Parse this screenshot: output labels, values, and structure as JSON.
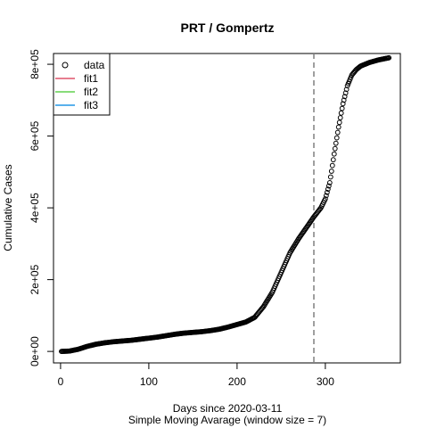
{
  "chart_data": {
    "type": "scatter",
    "title": "PRT / Gompertz",
    "xlabel": "Days since 2020-03-11",
    "subtitle": "Simple Moving Avarage (window size = 7)",
    "ylabel": "Cumulative Cases",
    "xlim": [
      -8,
      385
    ],
    "ylim": [
      -32000,
      830000
    ],
    "x_ticks": [
      0,
      100,
      200,
      300
    ],
    "x_tick_labels": [
      "0",
      "100",
      "200",
      "300"
    ],
    "y_ticks": [
      0,
      200000,
      400000,
      600000,
      800000
    ],
    "y_tick_labels": [
      "0e+00",
      "2e+05",
      "4e+05",
      "6e+05",
      "8e+05"
    ],
    "vline": {
      "x": 287,
      "style": "dashed",
      "color": "#808080"
    },
    "grid": false,
    "legend_position": "top-left",
    "legend": [
      {
        "name": "data",
        "marker": "circle",
        "color": "#000000"
      },
      {
        "name": "fit1",
        "marker": "line",
        "color": "#DF536B"
      },
      {
        "name": "fit2",
        "marker": "line",
        "color": "#61D04F"
      },
      {
        "name": "fit3",
        "marker": "line",
        "color": "#2297E6"
      }
    ],
    "series": [
      {
        "name": "data",
        "marker": "circle",
        "color": "#000000",
        "x_start": 1,
        "x_end": 372,
        "curve_points": [
          [
            1,
            0
          ],
          [
            10,
            1000
          ],
          [
            20,
            6000
          ],
          [
            30,
            14000
          ],
          [
            40,
            20000
          ],
          [
            50,
            24000
          ],
          [
            60,
            27000
          ],
          [
            70,
            29000
          ],
          [
            80,
            31000
          ],
          [
            90,
            34000
          ],
          [
            100,
            37000
          ],
          [
            110,
            40000
          ],
          [
            120,
            44000
          ],
          [
            130,
            48000
          ],
          [
            140,
            51000
          ],
          [
            150,
            53000
          ],
          [
            160,
            55000
          ],
          [
            170,
            58000
          ],
          [
            180,
            62000
          ],
          [
            190,
            68000
          ],
          [
            200,
            75000
          ],
          [
            210,
            82000
          ],
          [
            220,
            95000
          ],
          [
            230,
            125000
          ],
          [
            240,
            165000
          ],
          [
            250,
            220000
          ],
          [
            260,
            275000
          ],
          [
            270,
            315000
          ],
          [
            280,
            350000
          ],
          [
            287,
            375000
          ],
          [
            295,
            400000
          ],
          [
            300,
            425000
          ],
          [
            305,
            470000
          ],
          [
            310,
            550000
          ],
          [
            315,
            625000
          ],
          [
            320,
            690000
          ],
          [
            325,
            740000
          ],
          [
            330,
            770000
          ],
          [
            335,
            785000
          ],
          [
            340,
            795000
          ],
          [
            350,
            805000
          ],
          [
            360,
            812000
          ],
          [
            372,
            818000
          ]
        ]
      }
    ]
  }
}
